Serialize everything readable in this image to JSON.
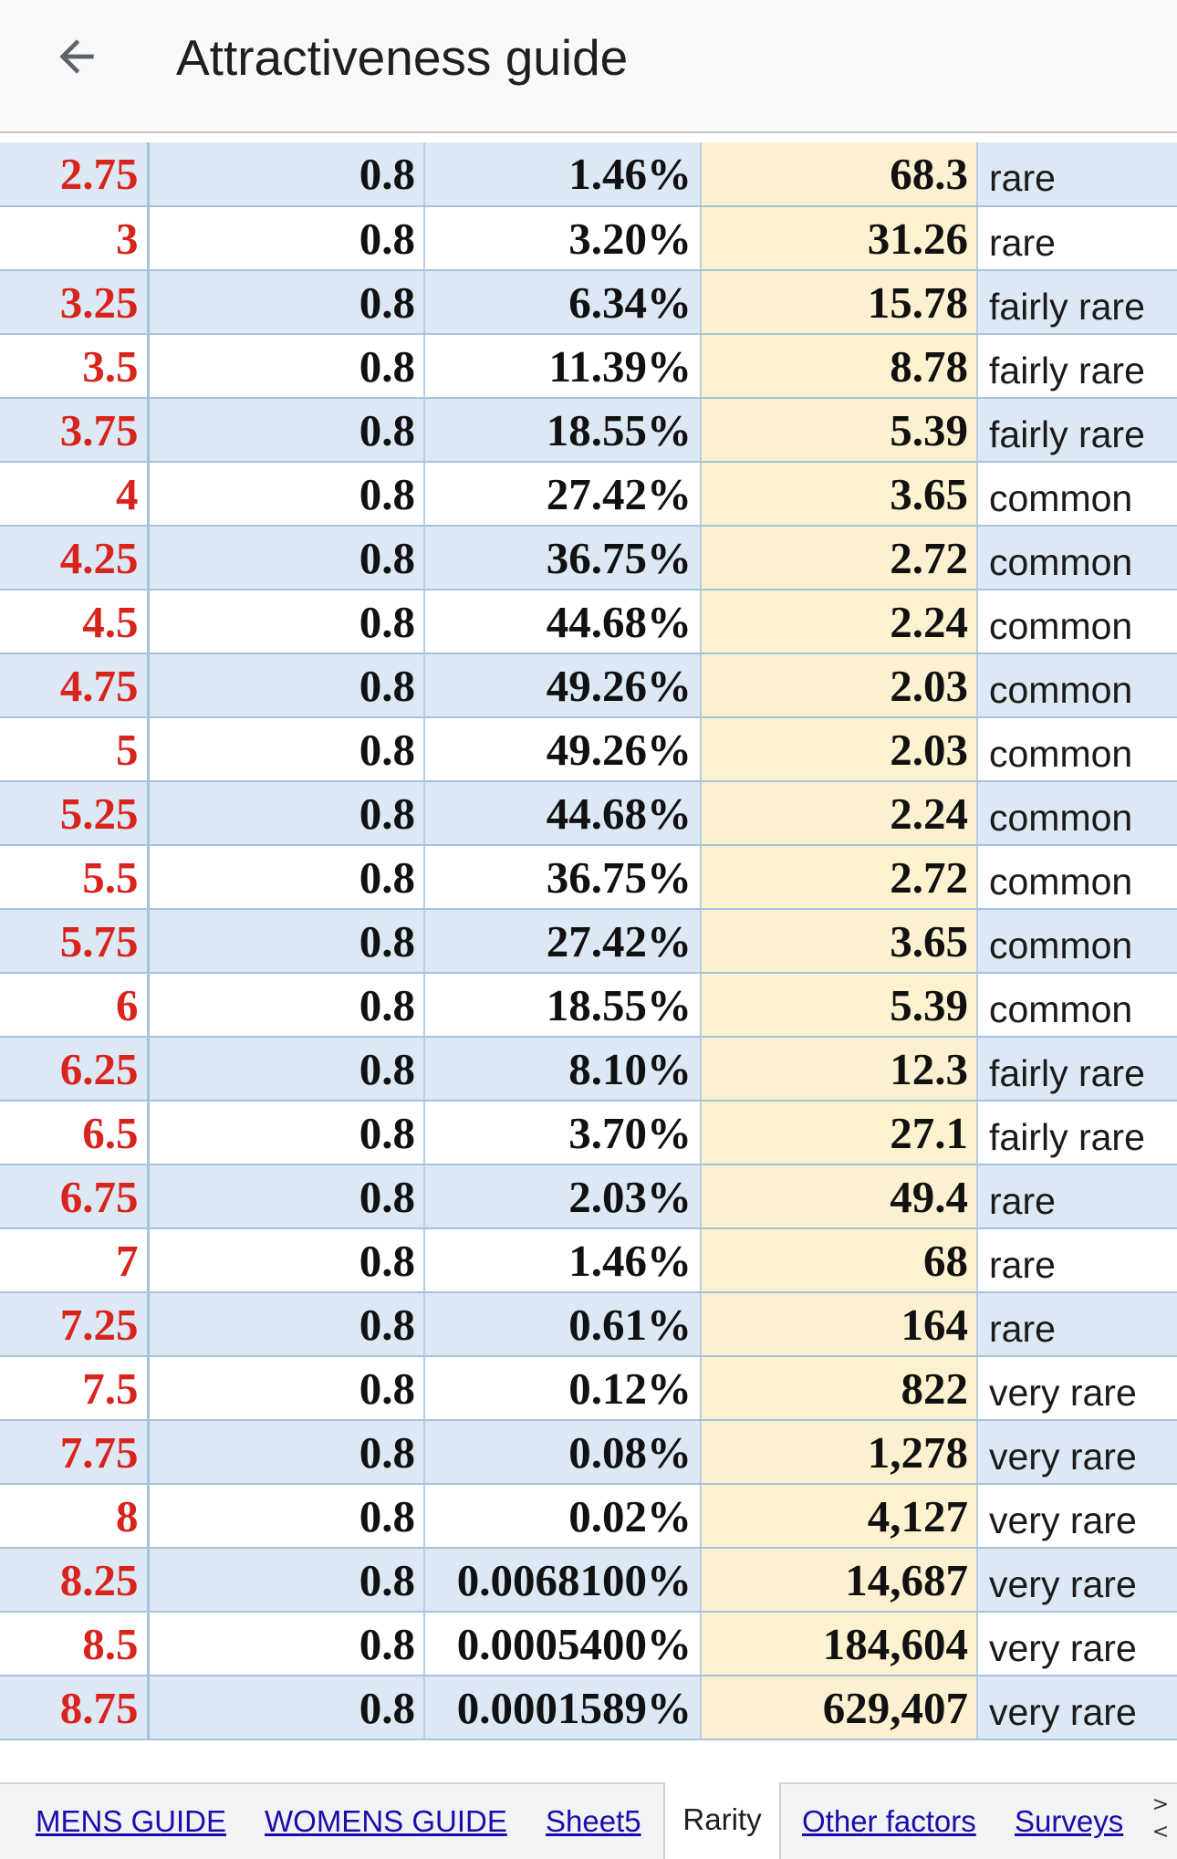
{
  "header": {
    "title": "Attractiveness guide",
    "back_icon": "arrow-left-icon"
  },
  "table": {
    "rows": [
      [
        "2.75",
        "0.8",
        "1.46%",
        "68.3",
        "rare"
      ],
      [
        "3",
        "0.8",
        "3.20%",
        "31.26",
        "rare"
      ],
      [
        "3.25",
        "0.8",
        "6.34%",
        "15.78",
        "fairly rare"
      ],
      [
        "3.5",
        "0.8",
        "11.39%",
        "8.78",
        "fairly rare"
      ],
      [
        "3.75",
        "0.8",
        "18.55%",
        "5.39",
        "fairly rare"
      ],
      [
        "4",
        "0.8",
        "27.42%",
        "3.65",
        "common"
      ],
      [
        "4.25",
        "0.8",
        "36.75%",
        "2.72",
        "common"
      ],
      [
        "4.5",
        "0.8",
        "44.68%",
        "2.24",
        "common"
      ],
      [
        "4.75",
        "0.8",
        "49.26%",
        "2.03",
        "common"
      ],
      [
        "5",
        "0.8",
        "49.26%",
        "2.03",
        "common"
      ],
      [
        "5.25",
        "0.8",
        "44.68%",
        "2.24",
        "common"
      ],
      [
        "5.5",
        "0.8",
        "36.75%",
        "2.72",
        "common"
      ],
      [
        "5.75",
        "0.8",
        "27.42%",
        "3.65",
        "common"
      ],
      [
        "6",
        "0.8",
        "18.55%",
        "5.39",
        "common"
      ],
      [
        "6.25",
        "0.8",
        "8.10%",
        "12.3",
        "fairly rare"
      ],
      [
        "6.5",
        "0.8",
        "3.70%",
        "27.1",
        "fairly rare"
      ],
      [
        "6.75",
        "0.8",
        "2.03%",
        "49.4",
        "rare"
      ],
      [
        "7",
        "0.8",
        "1.46%",
        "68",
        "rare"
      ],
      [
        "7.25",
        "0.8",
        "0.61%",
        "164",
        "rare"
      ],
      [
        "7.5",
        "0.8",
        "0.12%",
        "822",
        "very rare"
      ],
      [
        "7.75",
        "0.8",
        "0.08%",
        "1,278",
        "very rare"
      ],
      [
        "8",
        "0.8",
        "0.02%",
        "4,127",
        "very rare"
      ],
      [
        "8.25",
        "0.8",
        "0.0068100%",
        "14,687",
        "very rare"
      ],
      [
        "8.5",
        "0.8",
        "0.0005400%",
        "184,604",
        "very rare"
      ],
      [
        "8.75",
        "0.8",
        "0.0001589%",
        "629,407",
        "very rare"
      ]
    ]
  },
  "tabs": [
    {
      "label": "MENS GUIDE",
      "active": false
    },
    {
      "label": "WOMENS GUIDE",
      "active": false
    },
    {
      "label": "Sheet5",
      "active": false
    },
    {
      "label": "Rarity",
      "active": true
    },
    {
      "label": "Other factors",
      "active": false
    },
    {
      "label": "Surveys",
      "active": false
    }
  ],
  "tab_scroll": {
    "next_glyph": ">",
    "prev_glyph": "<"
  },
  "colors": {
    "score_red": "#d9231d",
    "band_blue": "#dde8f5",
    "highlight_yellow": "#fdf2d0",
    "link_blue": "#1a0dab"
  }
}
